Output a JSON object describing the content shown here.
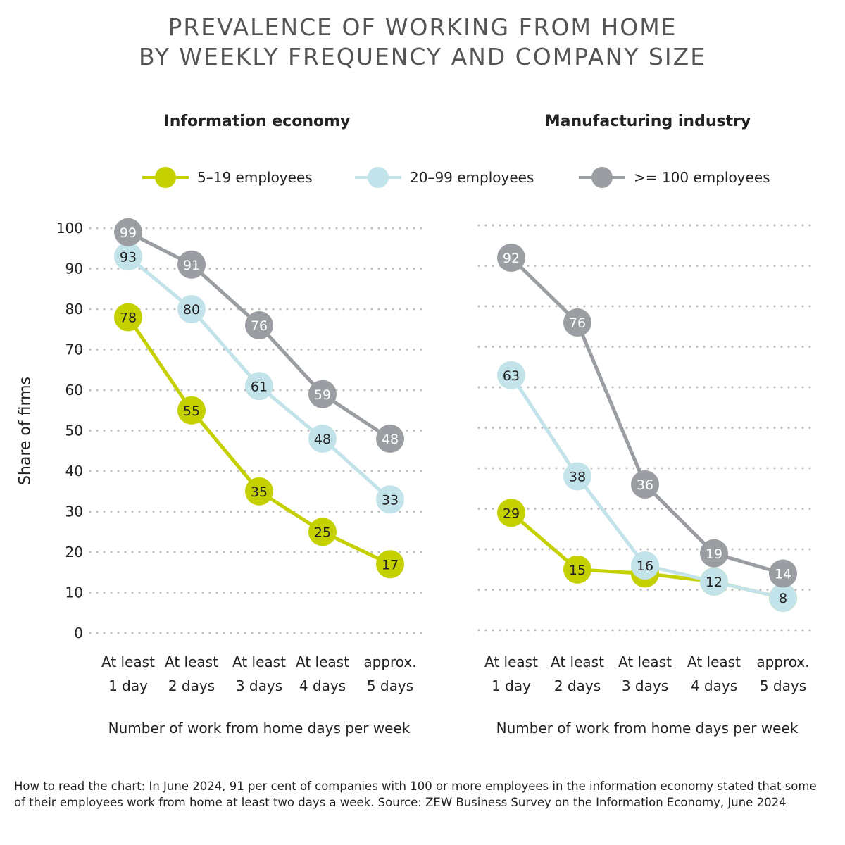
{
  "title_lines": [
    "PREVALENCE OF WORKING FROM HOME",
    "BY WEEKLY FREQUENCY AND COMPANY SIZE"
  ],
  "colors": {
    "small": "#c4d000",
    "medium": "#c3e3ea",
    "large": "#9a9da1",
    "grid": "#bbbbbb",
    "text": "#222222"
  },
  "legend": [
    {
      "label": "5–19 employees",
      "color": "#c4d000"
    },
    {
      "label": "20–99 employees",
      "color": "#c3e3ea"
    },
    {
      "label": ">= 100 employees",
      "color": "#9a9da1"
    }
  ],
  "ylabel": "Share of firms",
  "footnote": "How to read the chart: In June 2024, 91 per cent of companies with 100 or more employees in the information economy stated that some of their employees work from home at least two days a week. Source: ZEW Business Survey on the Information Economy, June 2024",
  "chart_data": [
    {
      "type": "line",
      "title": "Information economy",
      "xlabel": "Number of work from home days per week",
      "ylabel": "Share of firms",
      "categories": [
        [
          "At least",
          "1 day"
        ],
        [
          "At least",
          "2 days"
        ],
        [
          "At least",
          "3 days"
        ],
        [
          "At least",
          "4 days"
        ],
        [
          "approx.",
          "5 days"
        ]
      ],
      "ylim": [
        0,
        100
      ],
      "yticks": [
        0,
        10,
        20,
        30,
        40,
        50,
        60,
        70,
        80,
        90,
        100
      ],
      "grid": true,
      "series": [
        {
          "name": "5–19 employees",
          "color": "#c4d000",
          "values": [
            78,
            55,
            35,
            25,
            17
          ]
        },
        {
          "name": "20–99 employees",
          "color": "#c3e3ea",
          "values": [
            93,
            80,
            61,
            48,
            33
          ]
        },
        {
          "name": ">= 100 employees",
          "color": "#9a9da1",
          "values": [
            99,
            91,
            76,
            59,
            48
          ]
        }
      ]
    },
    {
      "type": "line",
      "title": "Manufacturing industry",
      "xlabel": "Number of work from home days per week",
      "categories": [
        [
          "At least",
          "1 day"
        ],
        [
          "At least",
          "2 days"
        ],
        [
          "At least",
          "3 days"
        ],
        [
          "At least",
          "4 days"
        ],
        [
          "approx.",
          "5 days"
        ]
      ],
      "ylim": [
        0,
        100
      ],
      "grid": true,
      "series": [
        {
          "name": "5–19 employees",
          "color": "#c4d000",
          "values": [
            29,
            15,
            14,
            12,
            8
          ],
          "labels": [
            "29",
            "15",
            "",
            "",
            ""
          ]
        },
        {
          "name": "20–99 employees",
          "color": "#c3e3ea",
          "values": [
            63,
            38,
            16,
            12,
            8
          ],
          "labels": [
            "63",
            "38",
            "16",
            "12",
            "8"
          ]
        },
        {
          "name": ">= 100 employees",
          "color": "#9a9da1",
          "values": [
            92,
            76,
            36,
            19,
            14
          ],
          "labels": [
            "92",
            "76",
            "36",
            "19",
            "14"
          ]
        }
      ]
    }
  ]
}
